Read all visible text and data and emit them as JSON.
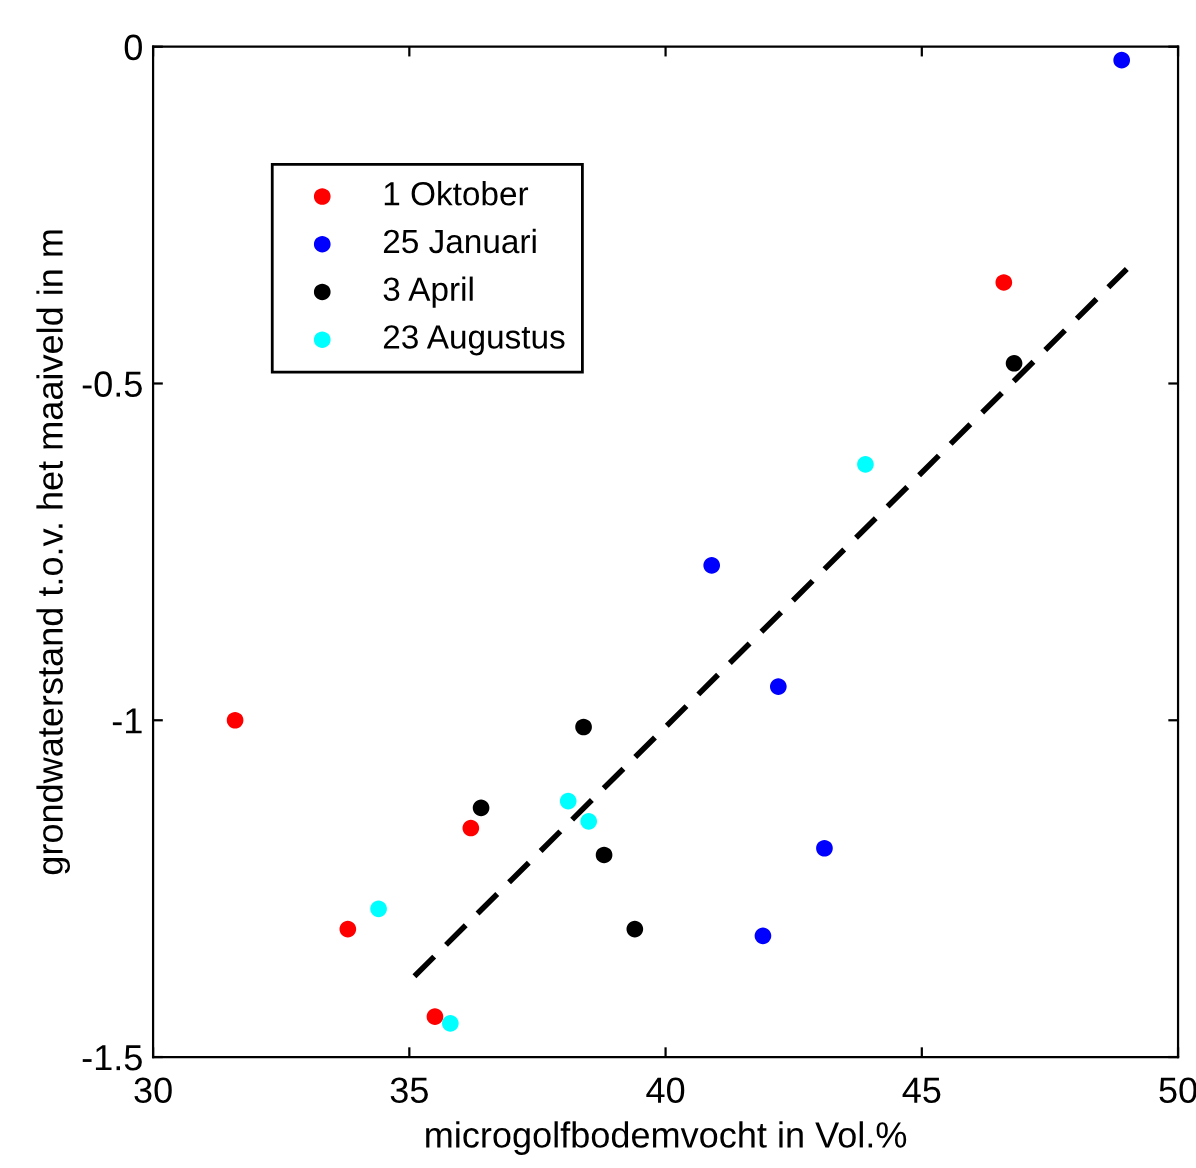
{
  "chart_data": {
    "type": "scatter",
    "xlabel": "microgolfbodemvocht in Vol.%",
    "ylabel": "grondwaterstand t.o.v. het maaiveld in m",
    "xlim": [
      30,
      50
    ],
    "xticks": [
      30,
      35,
      40,
      45,
      50
    ],
    "ylim": [
      -1.5,
      0
    ],
    "yticks": [
      -1.5,
      -1,
      -0.5,
      0
    ],
    "grid": false,
    "legend": "top left",
    "marker": "circle",
    "series": [
      {
        "name": "1 Oktober",
        "color": "#ff0000",
        "x": [
          31.6,
          33.8,
          36.2,
          35.5,
          46.6
        ],
        "values": [
          -1.0,
          -1.31,
          -1.16,
          -1.44,
          -0.35
        ]
      },
      {
        "name": "25 Januari",
        "color": "#0000ff",
        "x": [
          48.9,
          40.9,
          42.2,
          43.1,
          41.9
        ],
        "values": [
          -0.02,
          -0.77,
          -0.95,
          -1.19,
          -1.32
        ]
      },
      {
        "name": "3 April",
        "color": "#000000",
        "x": [
          46.8,
          38.4,
          36.4,
          38.8,
          39.4
        ],
        "values": [
          -0.47,
          -1.01,
          -1.13,
          -1.2,
          -1.31
        ]
      },
      {
        "name": "23 Augustus",
        "color": "#00ffff",
        "x": [
          43.9,
          38.1,
          38.5,
          34.4,
          35.8
        ],
        "values": [
          -0.62,
          -1.12,
          -1.15,
          -1.28,
          -1.45
        ]
      },
      {
        "type": "line",
        "color": "#000000",
        "line_style": "dashed",
        "marker": "none",
        "x": [
          35.1,
          49.0
        ],
        "values": [
          -1.38,
          -0.33
        ]
      }
    ]
  }
}
